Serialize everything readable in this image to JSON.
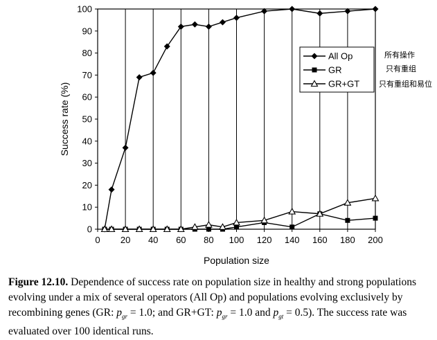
{
  "chart_data": {
    "type": "line",
    "title": "",
    "xlabel": "Population size",
    "ylabel": "Success rate (%)",
    "xlim": [
      0,
      200
    ],
    "ylim": [
      0,
      100
    ],
    "xticks": [
      0,
      20,
      40,
      60,
      80,
      100,
      120,
      140,
      160,
      180,
      200
    ],
    "yticks": [
      0,
      10,
      20,
      30,
      40,
      50,
      60,
      70,
      80,
      90,
      100
    ],
    "grid": "vertical",
    "legend_position": "right",
    "series": [
      {
        "name": "All Op",
        "marker": "diamond",
        "color": "#000000",
        "x": [
          5,
          10,
          20,
          30,
          40,
          50,
          60,
          70,
          80,
          90,
          100,
          120,
          140,
          160,
          180,
          200
        ],
        "y": [
          0,
          18,
          37,
          69,
          71,
          83,
          92,
          93,
          92,
          94,
          96,
          99,
          100,
          98,
          99,
          100
        ]
      },
      {
        "name": "GR",
        "marker": "square",
        "color": "#000000",
        "x": [
          5,
          10,
          20,
          30,
          40,
          50,
          60,
          70,
          80,
          90,
          100,
          120,
          140,
          160,
          180,
          200
        ],
        "y": [
          0,
          0,
          0,
          0,
          0,
          0,
          0,
          0,
          0,
          0,
          1,
          3,
          1,
          7,
          4,
          5
        ]
      },
      {
        "name": "GR+GT",
        "marker": "triangle",
        "color": "#000000",
        "x": [
          5,
          10,
          20,
          30,
          40,
          50,
          60,
          70,
          80,
          90,
          100,
          120,
          140,
          160,
          180,
          200
        ],
        "y": [
          0,
          0,
          0,
          0,
          0,
          0,
          0,
          1,
          2,
          1,
          3,
          4,
          8,
          7,
          12,
          14
        ]
      }
    ],
    "annotations": [
      "所有操作",
      "只有重组",
      "只有重组和易位"
    ]
  },
  "caption": {
    "label": "Figure 12.10.",
    "part1": " Dependence of success rate on population size in healthy and strong populations evolving under a mix of several operators (All Op) and populations evolving exclusively by recombining genes (GR: ",
    "p": "p",
    "sub_gr": "gr",
    "eq_gr1": " = 1.0; and GR+GT: ",
    "eq_gr2": " = 1.0 and ",
    "sub_gt": "gt",
    "eq_gt": " = 0.5). The success rate was evaluated over 100 identical runs."
  }
}
